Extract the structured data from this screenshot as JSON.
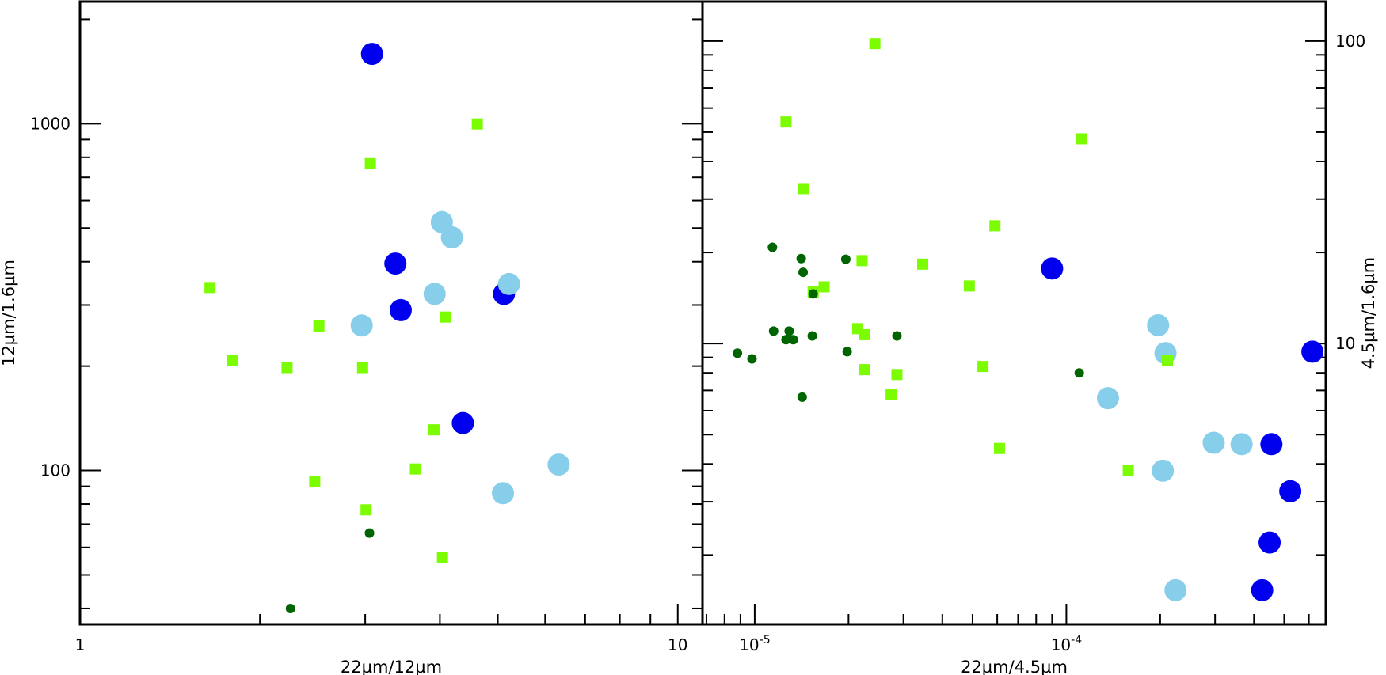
{
  "chart_data": [
    {
      "id": "left",
      "type": "scatter",
      "xscale": "log",
      "yscale": "log",
      "xlim": [
        1,
        11
      ],
      "ylim": [
        36,
        2250
      ],
      "xlabel": "22µm/12µm",
      "ylabel": "12µm/1.6µm",
      "x_ticks": [
        {
          "value": 1,
          "label": "1"
        },
        {
          "value": 10,
          "label": "10"
        }
      ],
      "y_ticks": [
        {
          "value": 100,
          "label": "100"
        },
        {
          "value": 1000,
          "label": "1000"
        }
      ],
      "series": [
        {
          "name": "blue",
          "color": "#0000ee",
          "marker": "circle",
          "size": "large",
          "points": [
            [
              3.08,
              1590
            ],
            [
              3.37,
              395
            ],
            [
              3.44,
              290
            ],
            [
              5.12,
              323
            ],
            [
              4.37,
              137
            ]
          ]
        },
        {
          "name": "light-blue",
          "color": "#87ceeb",
          "marker": "circle",
          "size": "large",
          "points": [
            [
              4.03,
              520
            ],
            [
              4.19,
              470
            ],
            [
              5.22,
              345
            ],
            [
              3.92,
              323
            ],
            [
              2.96,
              262
            ],
            [
              6.32,
              104
            ],
            [
              5.1,
              86
            ]
          ]
        },
        {
          "name": "lime-green",
          "color": "#7cfc00",
          "marker": "square",
          "size": "small",
          "points": [
            [
              1.65,
              337
            ],
            [
              1.8,
              208
            ],
            [
              2.22,
              198
            ],
            [
              2.51,
              261
            ],
            [
              2.97,
              198
            ],
            [
              3.06,
              767
            ],
            [
              4.62,
              998
            ],
            [
              4.09,
              277
            ],
            [
              3.91,
              131
            ],
            [
              3.64,
              101
            ],
            [
              2.47,
              93
            ],
            [
              3.01,
              77
            ],
            [
              4.04,
              56
            ]
          ]
        },
        {
          "name": "dark-green",
          "color": "#006400",
          "marker": "circle",
          "size": "small",
          "points": [
            [
              3.05,
              66
            ],
            [
              2.25,
              40
            ]
          ]
        }
      ]
    },
    {
      "id": "right",
      "type": "scatter",
      "xscale": "log",
      "yscale": "log",
      "xlim": [
        6.8e-06,
        0.00068
      ],
      "ylim": [
        1.18,
        135
      ],
      "xlabel": "22µm/4.5µm",
      "ylabel": "4.5µm/1.6µm",
      "x_ticks": [
        {
          "value": 1e-05,
          "label": "10",
          "exponent": "-5"
        },
        {
          "value": 0.0001,
          "label": "10",
          "exponent": "-4"
        }
      ],
      "y_ticks": [
        {
          "value": 10,
          "label": "10"
        },
        {
          "value": 100,
          "label": "100"
        }
      ],
      "series": [
        {
          "name": "blue",
          "color": "#0000ee",
          "marker": "circle",
          "size": "large",
          "points": [
            [
              9e-05,
              17.7
            ],
            [
              0.000616,
              9.4
            ],
            [
              0.000455,
              4.65
            ],
            [
              0.000523,
              3.25
            ],
            [
              0.000449,
              2.2
            ],
            [
              0.000425,
              1.53
            ]
          ]
        },
        {
          "name": "light-blue",
          "color": "#87ceeb",
          "marker": "circle",
          "size": "large",
          "points": [
            [
              0.000197,
              11.5
            ],
            [
              0.000208,
              9.3
            ],
            [
              0.000136,
              6.6
            ],
            [
              0.000297,
              4.7
            ],
            [
              0.000365,
              4.65
            ],
            [
              0.000224,
              1.53
            ],
            [
              0.000204,
              3.8
            ]
          ]
        },
        {
          "name": "lime-green",
          "color": "#7cfc00",
          "marker": "square",
          "size": "small",
          "points": [
            [
              2.43e-05,
              98
            ],
            [
              1.26e-05,
              54
            ],
            [
              0.000112,
              47.5
            ],
            [
              1.43e-05,
              32.5
            ],
            [
              5.9e-05,
              24.5
            ],
            [
              2.21e-05,
              18.8
            ],
            [
              3.46e-05,
              18.3
            ],
            [
              4.88e-05,
              15.5
            ],
            [
              1.54e-05,
              14.8
            ],
            [
              1.67e-05,
              15.4
            ],
            [
              2.14e-05,
              11.2
            ],
            [
              2.25e-05,
              10.7
            ],
            [
              2.25e-05,
              8.2
            ],
            [
              2.86e-05,
              7.9
            ],
            [
              5.4e-05,
              8.4
            ],
            [
              2.74e-05,
              6.8
            ],
            [
              0.000211,
              8.8
            ],
            [
              6.1e-05,
              4.5
            ],
            [
              0.000158,
              3.8
            ]
          ]
        },
        {
          "name": "dark-green",
          "color": "#006400",
          "marker": "circle",
          "size": "small",
          "points": [
            [
              1.14e-05,
              20.8
            ],
            [
              1.41e-05,
              19.1
            ],
            [
              1.96e-05,
              19.0
            ],
            [
              1.43e-05,
              17.2
            ],
            [
              1.54e-05,
              14.6
            ],
            [
              1.15e-05,
              11.0
            ],
            [
              1.29e-05,
              11.0
            ],
            [
              1.26e-05,
              10.3
            ],
            [
              1.33e-05,
              10.3
            ],
            [
              1.53e-05,
              10.6
            ],
            [
              1.98e-05,
              9.4
            ],
            [
              2.86e-05,
              10.6
            ],
            [
              8.8e-06,
              9.3
            ],
            [
              9.8e-06,
              8.9
            ],
            [
              1.42e-05,
              6.65
            ],
            [
              0.00011,
              8.0
            ]
          ]
        }
      ]
    }
  ]
}
